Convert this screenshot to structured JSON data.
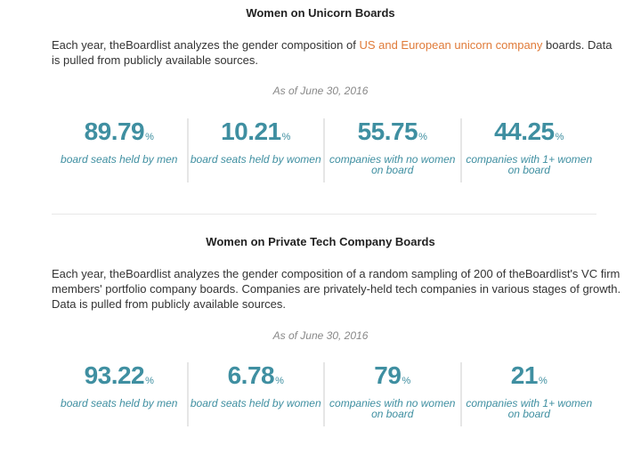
{
  "sections": [
    {
      "title": "Women on Unicorn Boards",
      "intro_before": "Each year, theBoardlist analyzes the gender composition of ",
      "intro_link": "US and European unicorn company",
      "intro_after": " boards. Data is pulled from publicly available sources.",
      "date": "As of June 30, 2016",
      "stats": [
        {
          "value": "89.79",
          "unit": "%",
          "label": "board seats held by men"
        },
        {
          "value": "10.21",
          "unit": "%",
          "label": "board seats held by women"
        },
        {
          "value": "55.75",
          "unit": "%",
          "label": "companies with no women on board"
        },
        {
          "value": "44.25",
          "unit": "%",
          "label": "companies with 1+ women on board"
        }
      ]
    },
    {
      "title": "Women on Private Tech Company Boards",
      "intro_before": "Each year, theBoardlist analyzes the gender composition of a random sampling of 200 of theBoardlist's VC firm members' portfolio company boards. Companies are privately-held tech companies in various stages of growth. Data is pulled from publicly available sources.",
      "date": "As of June 30, 2016",
      "stats": [
        {
          "value": "93.22",
          "unit": "%",
          "label": "board seats held by men"
        },
        {
          "value": "6.78",
          "unit": "%",
          "label": "board seats held by women"
        },
        {
          "value": "79",
          "unit": "%",
          "label": "companies with no women on board"
        },
        {
          "value": "21",
          "unit": "%",
          "label": "companies with 1+ women on board"
        }
      ]
    }
  ]
}
